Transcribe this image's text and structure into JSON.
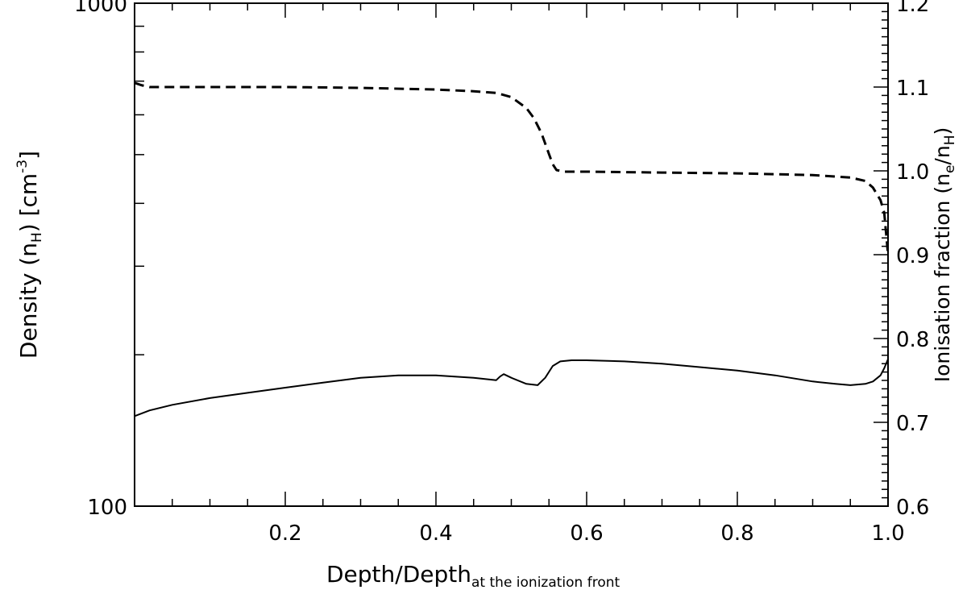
{
  "chart_data": {
    "type": "line",
    "title": "",
    "xlabel": "Depth/Depth",
    "xlabel_subscript": "at the ionization front",
    "ylabel_left": {
      "base": "Density (n",
      "sub": "H",
      "mid": ") [cm",
      "sup": "-3",
      "end": "]"
    },
    "ylabel_right": {
      "base": "Ionisation fraction (n",
      "sub1": "e",
      "mid": "/n",
      "sub2": "H",
      "end": ")"
    },
    "xlim": [
      0.0,
      1.0
    ],
    "ylim_left": [
      100,
      1000
    ],
    "ylim_left_scale": "log",
    "ylim_right": [
      0.6,
      1.2
    ],
    "x_ticks": [
      {
        "value": 0.2,
        "label": "0.2"
      },
      {
        "value": 0.4,
        "label": "0.4"
      },
      {
        "value": 0.6,
        "label": "0.6"
      },
      {
        "value": 0.8,
        "label": "0.8"
      },
      {
        "value": 1.0,
        "label": "1.0"
      }
    ],
    "y_left_ticks": [
      {
        "value": 100,
        "label": "100"
      },
      {
        "value": 1000,
        "label": "1000"
      }
    ],
    "y_right_ticks": [
      {
        "value": 0.6,
        "label": "0.6"
      },
      {
        "value": 0.7,
        "label": "0.7"
      },
      {
        "value": 0.8,
        "label": "0.8"
      },
      {
        "value": 0.9,
        "label": "0.9"
      },
      {
        "value": 1.0,
        "label": "1.0"
      },
      {
        "value": 1.1,
        "label": "1.1"
      },
      {
        "value": 1.2,
        "label": "1.2"
      }
    ],
    "grid": false,
    "series": [
      {
        "axis": "left",
        "style": "solid",
        "x": [
          0.0,
          0.02,
          0.05,
          0.1,
          0.15,
          0.2,
          0.25,
          0.3,
          0.35,
          0.4,
          0.45,
          0.48,
          0.485,
          0.49,
          0.5,
          0.52,
          0.535,
          0.545,
          0.555,
          0.565,
          0.58,
          0.6,
          0.65,
          0.7,
          0.75,
          0.8,
          0.85,
          0.9,
          0.93,
          0.95,
          0.97,
          0.98,
          0.99,
          0.995,
          1.0
        ],
        "y": [
          151,
          155,
          159,
          164,
          168,
          172,
          176,
          180,
          182,
          182,
          180,
          178,
          181,
          183,
          180,
          175,
          174,
          180,
          190,
          194,
          195,
          195,
          194,
          192,
          189,
          186,
          182,
          177,
          175,
          174,
          175,
          177,
          182,
          188,
          196
        ]
      },
      {
        "axis": "right",
        "style": "dashed",
        "x": [
          0.0,
          0.01,
          0.02,
          0.05,
          0.1,
          0.2,
          0.3,
          0.4,
          0.45,
          0.48,
          0.5,
          0.52,
          0.53,
          0.54,
          0.55,
          0.555,
          0.56,
          0.57,
          0.6,
          0.7,
          0.8,
          0.9,
          0.95,
          0.97,
          0.98,
          0.99,
          0.995,
          1.0
        ],
        "y": [
          1.105,
          1.102,
          1.1,
          1.1,
          1.1,
          1.1,
          1.099,
          1.097,
          1.095,
          1.093,
          1.088,
          1.075,
          1.063,
          1.045,
          1.02,
          1.008,
          1.001,
          0.999,
          0.999,
          0.998,
          0.997,
          0.995,
          0.992,
          0.988,
          0.98,
          0.965,
          0.95,
          0.9
        ]
      }
    ]
  }
}
